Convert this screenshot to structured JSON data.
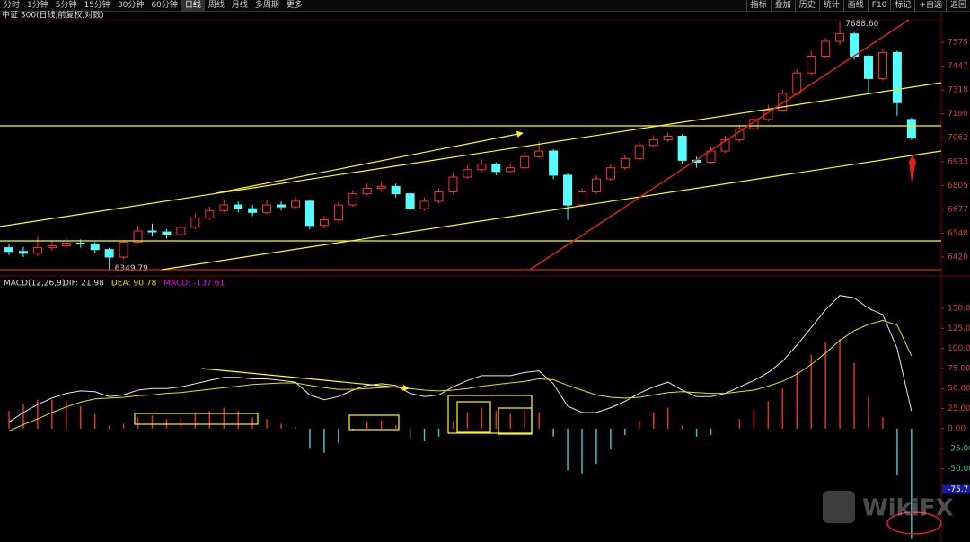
{
  "toolbar": {
    "left": [
      "分时",
      "1分钟",
      "5分钟",
      "15分钟",
      "30分钟",
      "60分钟",
      "日线",
      "周线",
      "月线",
      "多周期",
      "更多"
    ],
    "right": [
      "指标",
      "叠加",
      "历史",
      "统计",
      "画线",
      "F10",
      "标记",
      "+自选",
      "返回"
    ]
  },
  "watermark": "WikiFX",
  "chart_data": [
    {
      "type": "candlestick",
      "title": "中证 500(日线,前复权,对数)",
      "up_color": "#ff3232",
      "down_color": "#54ffff",
      "ylim": [
        6328,
        7696
      ],
      "yticks": [
        6420,
        6548,
        6677,
        6805,
        6933,
        7062,
        7190,
        7318,
        7447,
        7575
      ],
      "annotations": [
        {
          "value": 7688.6,
          "label": "7688.60"
        },
        {
          "value": 6349.79,
          "label": "6349.79"
        }
      ],
      "open": [
        6470,
        6450,
        6440,
        6470,
        6480,
        6495,
        6490,
        6460,
        6420,
        6500,
        6560,
        6555,
        6540,
        6580,
        6630,
        6670,
        6700,
        6680,
        6660,
        6700,
        6690,
        6720,
        6590,
        6620,
        6700,
        6760,
        6790,
        6800,
        6760,
        6680,
        6720,
        6770,
        6850,
        6890,
        6920,
        6880,
        6900,
        6960,
        6990,
        6860,
        6700,
        6770,
        6840,
        6900,
        6950,
        7020,
        7050,
        7070,
        6940,
        6930,
        6990,
        7050,
        7110,
        7160,
        7210,
        7300,
        7410,
        7500,
        7580,
        7620,
        7500,
        7380,
        7520,
        7160
      ],
      "high": [
        6490,
        6475,
        6530,
        6505,
        6520,
        6515,
        6500,
        6470,
        6510,
        6590,
        6600,
        6570,
        6600,
        6650,
        6690,
        6730,
        6720,
        6700,
        6725,
        6720,
        6745,
        6730,
        6640,
        6715,
        6780,
        6815,
        6830,
        6815,
        6770,
        6740,
        6790,
        6870,
        6910,
        6945,
        6930,
        6925,
        6985,
        7040,
        7000,
        6870,
        6790,
        6860,
        6920,
        6970,
        7040,
        7075,
        7090,
        7080,
        6960,
        7010,
        7070,
        7130,
        7180,
        7240,
        7320,
        7430,
        7530,
        7600,
        7688.6,
        7630,
        7510,
        7540,
        7530,
        7170
      ],
      "low": [
        6430,
        6420,
        6425,
        6455,
        6465,
        6470,
        6440,
        6349.79,
        6410,
        6490,
        6530,
        6520,
        6530,
        6570,
        6620,
        6660,
        6660,
        6640,
        6650,
        6670,
        6680,
        6570,
        6575,
        6610,
        6690,
        6750,
        6775,
        6740,
        6665,
        6670,
        6710,
        6760,
        6840,
        6880,
        6860,
        6870,
        6890,
        6950,
        6840,
        6620,
        6690,
        6760,
        6830,
        6890,
        6940,
        7010,
        7040,
        6920,
        6900,
        6920,
        6980,
        7040,
        7100,
        7150,
        7200,
        7290,
        7400,
        7490,
        7560,
        7480,
        7300,
        7370,
        7180,
        7050
      ],
      "close": [
        6450,
        6440,
        6470,
        6480,
        6495,
        6490,
        6460,
        6420,
        6500,
        6560,
        6555,
        6540,
        6580,
        6630,
        6670,
        6700,
        6680,
        6660,
        6700,
        6690,
        6720,
        6590,
        6620,
        6700,
        6760,
        6790,
        6800,
        6760,
        6680,
        6720,
        6770,
        6850,
        6890,
        6920,
        6880,
        6900,
        6960,
        6990,
        6860,
        6700,
        6770,
        6840,
        6900,
        6950,
        7020,
        7050,
        7070,
        6940,
        6930,
        6990,
        7050,
        7110,
        7160,
        7210,
        7300,
        7410,
        7500,
        7580,
        7620,
        7500,
        7380,
        7520,
        7250,
        7060
      ]
    },
    {
      "type": "macd",
      "title": "MACD(12,26,9)",
      "up_color": "#e03030",
      "down_color": "#3fbfbf",
      "ylim": [
        -138,
        178
      ],
      "yticks": [
        {
          "value": -50,
          "label": "-50.00"
        },
        {
          "value": -25,
          "label": "-25.00"
        },
        {
          "value": 0,
          "label": "0.00"
        },
        {
          "value": 25,
          "label": "25.00"
        },
        {
          "value": 50,
          "label": "50.00"
        },
        {
          "value": 75,
          "label": "75.00"
        },
        {
          "value": 100,
          "label": "100.00"
        },
        {
          "value": 125,
          "label": "125.00"
        },
        {
          "value": 150,
          "label": "150.00"
        }
      ],
      "cursor": -75.7,
      "series": [
        {
          "name": "DIF:",
          "color": "#e8e8e8",
          "values": [
            8,
            20,
            30,
            38,
            44,
            47,
            46,
            40,
            42,
            48,
            50,
            50,
            52,
            56,
            60,
            64,
            64,
            62,
            62,
            60,
            58,
            42,
            36,
            40,
            48,
            54,
            56,
            54,
            44,
            40,
            42,
            52,
            60,
            66,
            66,
            66,
            70,
            72,
            56,
            28,
            20,
            20,
            26,
            34,
            44,
            52,
            58,
            48,
            40,
            40,
            44,
            52,
            60,
            70,
            84,
            104,
            126,
            148,
            166,
            163,
            150,
            142,
            100,
            21.98
          ]
        },
        {
          "name": "DEA:",
          "color": "#e6e600",
          "values": [
            -3,
            5,
            12,
            20,
            27,
            33,
            37,
            38,
            39,
            41,
            42,
            44,
            45,
            47,
            49,
            51,
            53,
            55,
            56,
            57,
            57,
            54,
            51,
            49,
            49,
            50,
            51,
            52,
            50,
            48,
            47,
            48,
            50,
            53,
            55,
            57,
            59,
            62,
            61,
            54,
            48,
            42,
            39,
            38,
            39,
            42,
            45,
            46,
            45,
            44,
            44,
            46,
            48,
            53,
            59,
            68,
            80,
            94,
            110,
            122,
            130,
            135,
            129,
            90.78
          ]
        },
        {
          "name": "MACD:",
          "color": "#ff00ff",
          "values": [
            22,
            30,
            36,
            36,
            34,
            28,
            18,
            4,
            6,
            14,
            16,
            12,
            14,
            18,
            22,
            26,
            22,
            14,
            12,
            6,
            2,
            -24,
            -30,
            -18,
            -2,
            8,
            10,
            4,
            -12,
            -16,
            -10,
            8,
            20,
            26,
            22,
            18,
            22,
            20,
            -10,
            -52,
            -56,
            -44,
            -26,
            -8,
            10,
            20,
            26,
            4,
            -10,
            -8,
            0,
            12,
            24,
            34,
            50,
            72,
            92,
            108,
            112,
            82,
            40,
            14,
            -58,
            -137.61
          ]
        }
      ]
    }
  ]
}
